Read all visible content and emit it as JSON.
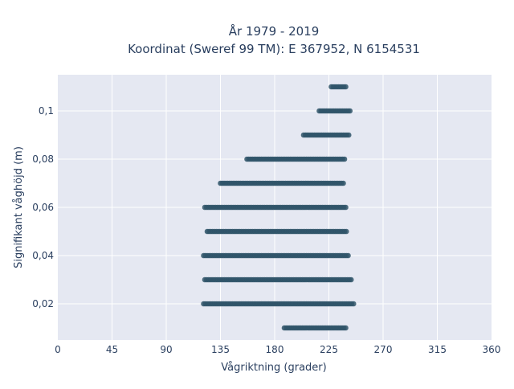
{
  "chart_data": {
    "type": "scatter",
    "title_line1": "År 1979 - 2019",
    "title_line2": "Koordinat (Sweref 99 TM): E 367952, N 6154531",
    "xlabel": "Vågriktning (grader)",
    "ylabel": "Signifikant våghöjd (m)",
    "xlim": [
      0,
      360
    ],
    "ylim": [
      0.005,
      0.115
    ],
    "x_ticks": [
      0,
      45,
      90,
      135,
      180,
      225,
      270,
      315,
      360
    ],
    "x_tick_labels": [
      "0",
      "45",
      "90",
      "135",
      "180",
      "225",
      "270",
      "315",
      "360"
    ],
    "y_ticks": [
      0.02,
      0.04,
      0.06,
      0.08,
      0.1
    ],
    "y_tick_labels": [
      "0,02",
      "0,04",
      "0,06",
      "0,08",
      "0,1"
    ],
    "grid": true,
    "colors": {
      "marker": "#2f5468",
      "plot_background": "#e5e8f2",
      "grid": "#ffffff",
      "text": "#2a3f5f"
    },
    "bands": [
      {
        "y": 0.11,
        "x_min": 227,
        "x_max": 239
      },
      {
        "y": 0.1,
        "x_min": 217,
        "x_max": 243
      },
      {
        "y": 0.09,
        "x_min": 204,
        "x_max": 242
      },
      {
        "y": 0.08,
        "x_min": 157,
        "x_max": 238
      },
      {
        "y": 0.07,
        "x_min": 135,
        "x_max": 238
      },
      {
        "y": 0.06,
        "x_min": 122,
        "x_max": 240
      },
      {
        "y": 0.05,
        "x_min": 124,
        "x_max": 240
      },
      {
        "y": 0.04,
        "x_min": 121,
        "x_max": 242
      },
      {
        "y": 0.03,
        "x_min": 122,
        "x_max": 244
      },
      {
        "y": 0.02,
        "x_min": 121,
        "x_max": 246
      },
      {
        "y": 0.01,
        "x_min": 188,
        "x_max": 240
      }
    ]
  }
}
